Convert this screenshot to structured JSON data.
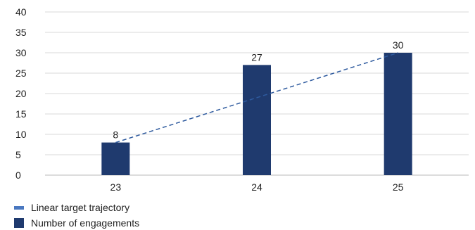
{
  "chart_data": {
    "type": "bar",
    "categories": [
      "23",
      "24",
      "25"
    ],
    "series": [
      {
        "name": "Number of engagements",
        "type": "bar",
        "values": [
          8,
          27,
          30
        ],
        "color": "#1f3a6e"
      },
      {
        "name": "Linear target trajectory",
        "type": "line",
        "style": "dashed",
        "values": [
          8,
          19,
          30
        ],
        "color": "#2e5a9e"
      }
    ],
    "data_labels": [
      "8",
      "27",
      "30"
    ],
    "ylim": [
      0,
      40
    ],
    "yticks": [
      0,
      5,
      10,
      15,
      20,
      25,
      30,
      35,
      40
    ],
    "grid": true,
    "legend_position": "bottom-left"
  },
  "legend": {
    "items": [
      {
        "label": "Linear target trajectory",
        "color": "#4a78c0",
        "marker": "line"
      },
      {
        "label": "Number of engagements",
        "color": "#1f3a6e",
        "marker": "box"
      }
    ]
  }
}
